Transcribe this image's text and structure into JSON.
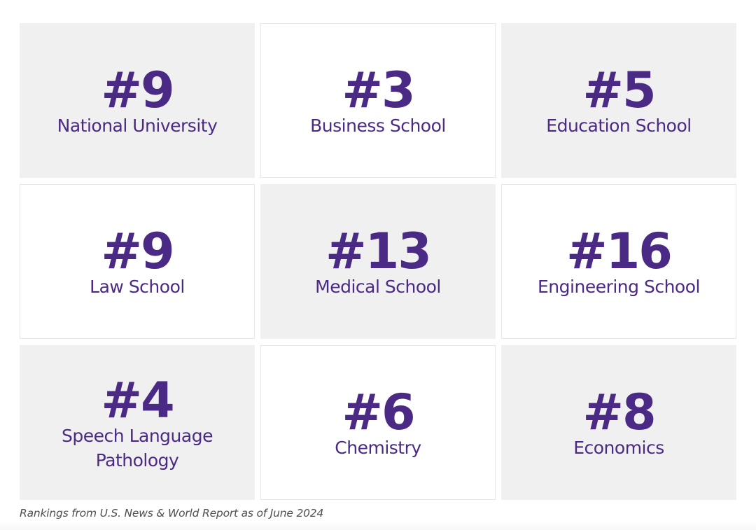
{
  "rankings": [
    {
      "rank": "#9",
      "label": "National University",
      "shade": "gray"
    },
    {
      "rank": "#3",
      "label": "Business School",
      "shade": "white"
    },
    {
      "rank": "#5",
      "label": "Education School",
      "shade": "gray"
    },
    {
      "rank": "#9",
      "label": "Law School",
      "shade": "white"
    },
    {
      "rank": "#13",
      "label": "Medical School",
      "shade": "gray"
    },
    {
      "rank": "#16",
      "label": "Engineering School",
      "shade": "white"
    },
    {
      "rank": "#4",
      "label": "Speech Language Pathology",
      "shade": "gray"
    },
    {
      "rank": "#6",
      "label": "Chemistry",
      "shade": "white"
    },
    {
      "rank": "#8",
      "label": "Economics",
      "shade": "gray"
    }
  ],
  "caption": "Rankings from U.S. News & World Report as of June 2024",
  "colors": {
    "accent": "#4b2a86",
    "tile_gray": "#f0f0f0",
    "tile_white": "#ffffff",
    "caption_text": "#4f4f4f"
  }
}
